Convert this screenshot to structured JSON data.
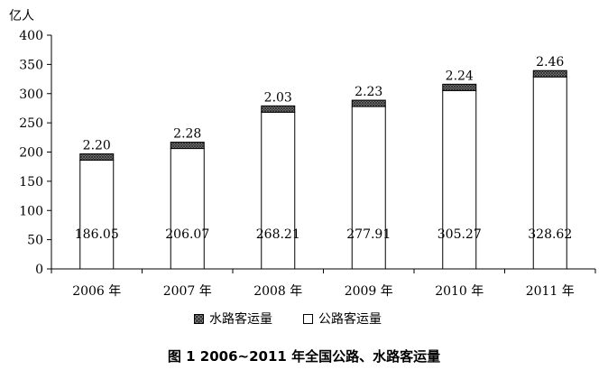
{
  "chart_data": {
    "type": "bar",
    "stacked": true,
    "categories": [
      "2006 年",
      "2007 年",
      "2008 年",
      "2009 年",
      "2010 年",
      "2011 年"
    ],
    "series": [
      {
        "name": "公路客运量",
        "values": [
          186.05,
          206.07,
          268.21,
          277.91,
          305.27,
          328.62
        ],
        "fill": "#ffffff"
      },
      {
        "name": "水路客运量",
        "values": [
          2.2,
          2.28,
          2.03,
          2.23,
          2.24,
          2.46
        ],
        "fill": "#8c8c8c"
      }
    ],
    "value_labels": {
      "road": [
        "186.05",
        "206.07",
        "268.21",
        "277.91",
        "305.27",
        "328.62"
      ],
      "water": [
        "2.20",
        "2.28",
        "2.03",
        "2.23",
        "2.24",
        "2.46"
      ]
    },
    "yticks": [
      "0",
      "50",
      "100",
      "150",
      "200",
      "250",
      "300",
      "350",
      "400"
    ],
    "ylim": [
      0,
      400
    ],
    "ylabel": "亿人",
    "title": "图 1 2006~2011 年全国公路、水路客运量",
    "legend_position": "bottom",
    "grid": false
  },
  "legend": {
    "water": "水路客运量",
    "road": "公路客运量"
  }
}
